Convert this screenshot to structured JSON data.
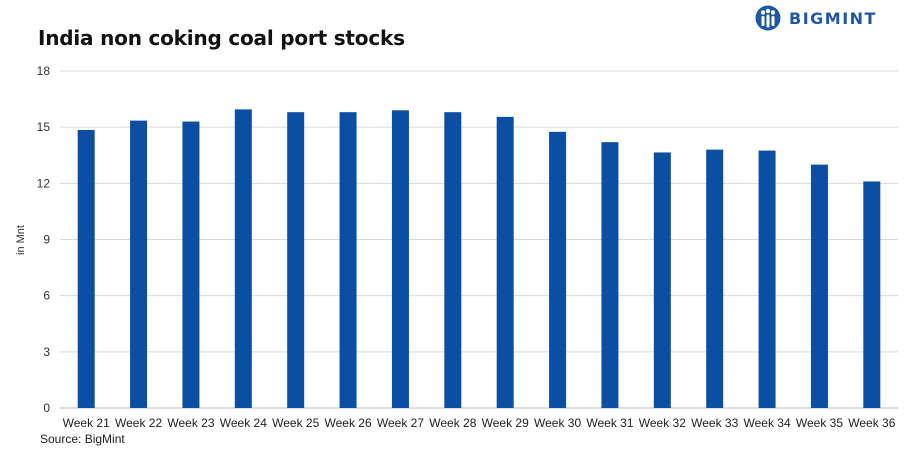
{
  "brand": {
    "name": "BIGMINT",
    "logo_icon": "bigmint-people-logo-icon",
    "color": "#1f57a5"
  },
  "chart_data": {
    "type": "bar",
    "title": "India non coking coal port stocks",
    "xlabel": "",
    "ylabel": "in Mnt",
    "categories": [
      "Week 21",
      "Week 22",
      "Week 23",
      "Week 24",
      "Week 25",
      "Week 26",
      "Week 27",
      "Week 28",
      "Week 29",
      "Week 30",
      "Week 31",
      "Week 32",
      "Week 33",
      "Week 34",
      "Week 35",
      "Week 36"
    ],
    "values": [
      14.85,
      15.35,
      15.3,
      15.95,
      15.8,
      15.8,
      15.9,
      15.8,
      15.55,
      14.75,
      14.2,
      13.65,
      13.8,
      13.75,
      13.0,
      12.1
    ],
    "ylim": [
      0,
      18
    ],
    "yticks": [
      0,
      3,
      6,
      9,
      12,
      15,
      18
    ],
    "grid": true,
    "bar_color": "#0b4ea2",
    "legend": "none"
  },
  "source": "Source: BigMint"
}
